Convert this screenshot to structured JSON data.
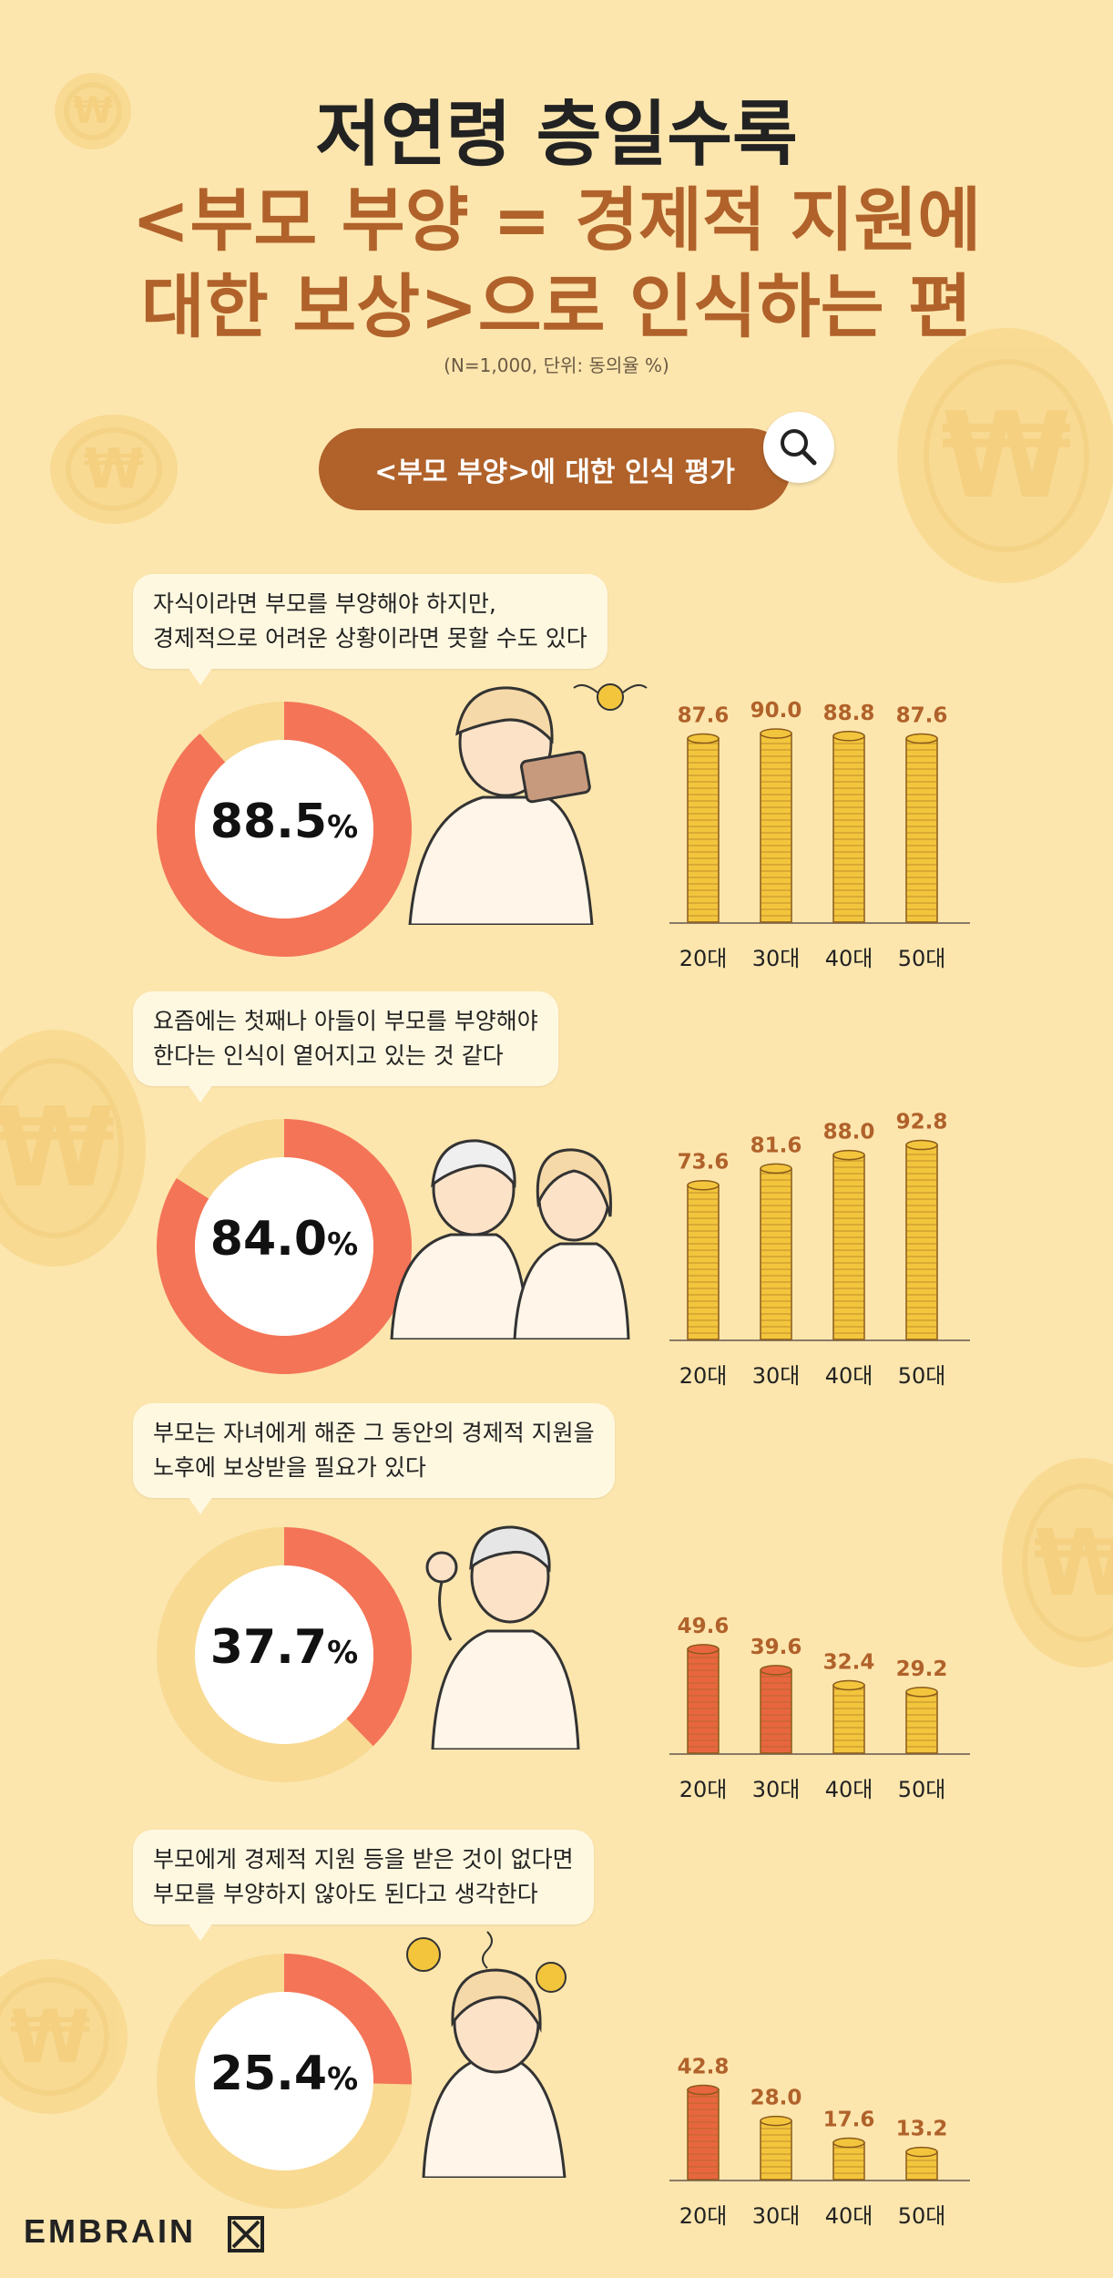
{
  "title": {
    "line1": "저연령 층일수록",
    "line2": "<부모 부양 = 경제적 지원에",
    "line3": "대한 보상>으로 인식하는 편"
  },
  "note": "(N=1,000, 단위: 동의율 %)",
  "section_label": "<부모 부양>에 대한 인식 평가",
  "brand": "EMBRAIN",
  "colors": {
    "coin": "#F2C53D",
    "coin_hi": "#E8663F",
    "donut": "#F47458",
    "brown": "#B0622A",
    "background": "#FCE6AE"
  },
  "chart_data": [
    {
      "type": "bar",
      "statement": [
        "자식이라면 부모를 부양해야 하지만,",
        "경제적으로 어려운 상황이라면 못할 수도 있다"
      ],
      "total": 88.5,
      "total_label": "88.5",
      "categories": [
        "20대",
        "30대",
        "40대",
        "50대"
      ],
      "values": [
        87.6,
        90.0,
        88.8,
        87.6
      ],
      "labels": [
        "87.6",
        "90.0",
        "88.8",
        "87.6"
      ],
      "highlighted": [
        false,
        false,
        false,
        false
      ]
    },
    {
      "type": "bar",
      "statement": [
        "요즘에는 첫째나 아들이 부모를 부양해야",
        "한다는 인식이 옅어지고 있는 것 같다"
      ],
      "total": 84.0,
      "total_label": "84.0",
      "categories": [
        "20대",
        "30대",
        "40대",
        "50대"
      ],
      "values": [
        73.6,
        81.6,
        88.0,
        92.8
      ],
      "labels": [
        "73.6",
        "81.6",
        "88.0",
        "92.8"
      ],
      "highlighted": [
        false,
        false,
        false,
        false
      ]
    },
    {
      "type": "bar",
      "statement": [
        "부모는 자녀에게 해준 그 동안의 경제적 지원을",
        "노후에 보상받을 필요가 있다"
      ],
      "total": 37.7,
      "total_label": "37.7",
      "categories": [
        "20대",
        "30대",
        "40대",
        "50대"
      ],
      "values": [
        49.6,
        39.6,
        32.4,
        29.2
      ],
      "labels": [
        "49.6",
        "39.6",
        "32.4",
        "29.2"
      ],
      "highlighted": [
        true,
        true,
        false,
        false
      ]
    },
    {
      "type": "bar",
      "statement": [
        "부모에게 경제적 지원 등을 받은 것이 없다면",
        "부모를 부양하지 않아도 된다고 생각한다"
      ],
      "total": 25.4,
      "total_label": "25.4",
      "categories": [
        "20대",
        "30대",
        "40대",
        "50대"
      ],
      "values": [
        42.8,
        28.0,
        17.6,
        13.2
      ],
      "labels": [
        "42.8",
        "28.0",
        "17.6",
        "13.2"
      ],
      "highlighted": [
        true,
        false,
        false,
        false
      ]
    }
  ]
}
